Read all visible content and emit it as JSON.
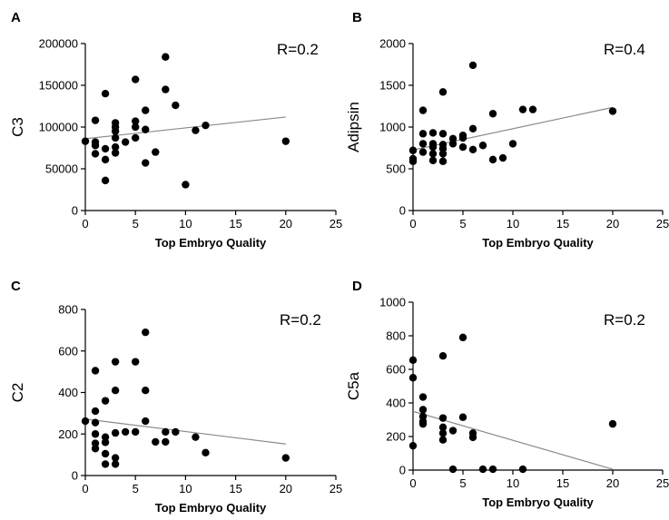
{
  "chart_data": [
    {
      "type": "scatter",
      "panel": "A",
      "title": "",
      "xlabel": "Top Embryo Quality",
      "ylabel": "C3",
      "annotation": "R=0.2",
      "xlim": [
        0,
        25
      ],
      "ylim": [
        0,
        200000
      ],
      "xticks": [
        0,
        5,
        10,
        15,
        20,
        25
      ],
      "yticks": [
        0,
        50000,
        100000,
        150000,
        200000
      ],
      "fit": [
        [
          0,
          86000
        ],
        [
          20,
          112000
        ]
      ],
      "points": [
        [
          0,
          83000
        ],
        [
          1,
          108000
        ],
        [
          1,
          82000
        ],
        [
          1,
          78000
        ],
        [
          1,
          68000
        ],
        [
          2,
          140000
        ],
        [
          2,
          74000
        ],
        [
          2,
          61000
        ],
        [
          2,
          36000
        ],
        [
          3,
          105000
        ],
        [
          3,
          100000
        ],
        [
          3,
          95000
        ],
        [
          3,
          87000
        ],
        [
          3,
          76000
        ],
        [
          3,
          69000
        ],
        [
          4,
          82000
        ],
        [
          5,
          157000
        ],
        [
          5,
          107000
        ],
        [
          5,
          100000
        ],
        [
          5,
          87000
        ],
        [
          6,
          120000
        ],
        [
          6,
          97000
        ],
        [
          6,
          57000
        ],
        [
          7,
          70000
        ],
        [
          8,
          184000
        ],
        [
          8,
          145000
        ],
        [
          9,
          126000
        ],
        [
          10,
          31000
        ],
        [
          11,
          96000
        ],
        [
          12,
          102000
        ],
        [
          20,
          83000
        ]
      ]
    },
    {
      "type": "scatter",
      "panel": "B",
      "title": "",
      "xlabel": "Top Embryo Quality",
      "ylabel": "Adipsin",
      "annotation": "R=0.4",
      "xlim": [
        0,
        25
      ],
      "ylim": [
        0,
        2000
      ],
      "xticks": [
        0,
        5,
        10,
        15,
        20,
        25
      ],
      "yticks": [
        0,
        500,
        1000,
        1500,
        2000
      ],
      "fit": [
        [
          0,
          725
        ],
        [
          20,
          1235
        ]
      ],
      "points": [
        [
          0,
          720
        ],
        [
          0,
          620
        ],
        [
          0,
          590
        ],
        [
          1,
          1200
        ],
        [
          1,
          920
        ],
        [
          1,
          800
        ],
        [
          1,
          700
        ],
        [
          2,
          930
        ],
        [
          2,
          800
        ],
        [
          2,
          760
        ],
        [
          2,
          680
        ],
        [
          2,
          600
        ],
        [
          3,
          1420
        ],
        [
          3,
          920
        ],
        [
          3,
          790
        ],
        [
          3,
          740
        ],
        [
          3,
          680
        ],
        [
          3,
          590
        ],
        [
          4,
          860
        ],
        [
          4,
          800
        ],
        [
          5,
          900
        ],
        [
          5,
          870
        ],
        [
          5,
          760
        ],
        [
          6,
          1740
        ],
        [
          6,
          980
        ],
        [
          6,
          730
        ],
        [
          7,
          780
        ],
        [
          8,
          1160
        ],
        [
          8,
          610
        ],
        [
          9,
          630
        ],
        [
          10,
          800
        ],
        [
          11,
          1210
        ],
        [
          12,
          1210
        ],
        [
          20,
          1190
        ]
      ]
    },
    {
      "type": "scatter",
      "panel": "C",
      "title": "",
      "xlabel": "Top Embryo Quality",
      "ylabel": "C2",
      "annotation": "R=0.2",
      "xlim": [
        0,
        25
      ],
      "ylim": [
        0,
        800
      ],
      "xticks": [
        0,
        5,
        10,
        15,
        20,
        25
      ],
      "yticks": [
        0,
        200,
        400,
        600,
        800
      ],
      "fit": [
        [
          0,
          272
        ],
        [
          20,
          152
        ]
      ],
      "points": [
        [
          0,
          262
        ],
        [
          1,
          505
        ],
        [
          1,
          310
        ],
        [
          1,
          255
        ],
        [
          1,
          200
        ],
        [
          1,
          155
        ],
        [
          1,
          130
        ],
        [
          2,
          360
        ],
        [
          2,
          185
        ],
        [
          2,
          160
        ],
        [
          2,
          105
        ],
        [
          2,
          55
        ],
        [
          3,
          548
        ],
        [
          3,
          410
        ],
        [
          3,
          205
        ],
        [
          3,
          85
        ],
        [
          3,
          55
        ],
        [
          4,
          210
        ],
        [
          5,
          548
        ],
        [
          5,
          210
        ],
        [
          6,
          690
        ],
        [
          6,
          410
        ],
        [
          6,
          262
        ],
        [
          7,
          162
        ],
        [
          8,
          210
        ],
        [
          8,
          162
        ],
        [
          9,
          210
        ],
        [
          11,
          185
        ],
        [
          12,
          110
        ],
        [
          20,
          85
        ]
      ]
    },
    {
      "type": "scatter",
      "panel": "D",
      "title": "",
      "xlabel": "Top Embryo Quality",
      "ylabel": "C5a",
      "annotation": "R=0.2",
      "xlim": [
        0,
        25
      ],
      "ylim": [
        0,
        1000
      ],
      "xticks": [
        0,
        5,
        10,
        15,
        20,
        25
      ],
      "yticks": [
        0,
        200,
        400,
        600,
        800,
        1000
      ],
      "fit": [
        [
          0,
          350
        ],
        [
          20,
          5
        ]
      ],
      "points": [
        [
          0,
          655
        ],
        [
          0,
          550
        ],
        [
          0,
          145
        ],
        [
          1,
          435
        ],
        [
          1,
          360
        ],
        [
          1,
          320
        ],
        [
          1,
          290
        ],
        [
          1,
          275
        ],
        [
          3,
          680
        ],
        [
          3,
          310
        ],
        [
          3,
          255
        ],
        [
          3,
          220
        ],
        [
          3,
          180
        ],
        [
          4,
          235
        ],
        [
          4,
          5
        ],
        [
          5,
          790
        ],
        [
          5,
          315
        ],
        [
          6,
          220
        ],
        [
          6,
          195
        ],
        [
          7,
          5
        ],
        [
          8,
          5
        ],
        [
          11,
          5
        ],
        [
          20,
          275
        ]
      ]
    }
  ]
}
